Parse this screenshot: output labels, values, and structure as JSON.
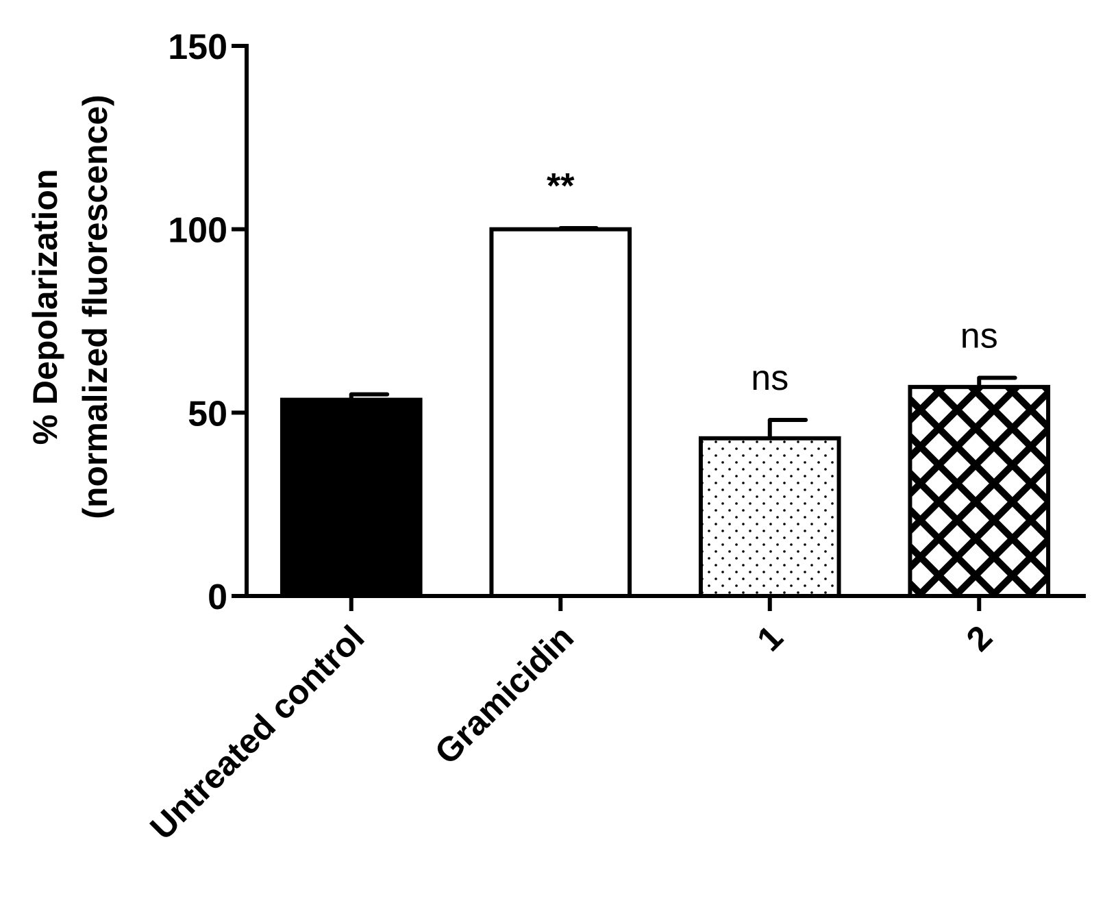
{
  "chart_data": {
    "type": "bar",
    "title": "",
    "xlabel": "",
    "ylabel": [
      "% Depolarization",
      "(normalized fluorescence)"
    ],
    "ylim": [
      0,
      150
    ],
    "yticks": [
      0,
      50,
      100,
      150
    ],
    "grid": false,
    "categories": [
      "Untreated control",
      "Gramicidin",
      "1",
      "2"
    ],
    "values": [
      53.5,
      100,
      43,
      57
    ],
    "errors": [
      1.5,
      0.3,
      5,
      2.5
    ],
    "annotations": [
      "",
      "**",
      "ns",
      "ns"
    ],
    "fills": [
      "solid-black",
      "white",
      "dotted",
      "crosshatch"
    ]
  }
}
